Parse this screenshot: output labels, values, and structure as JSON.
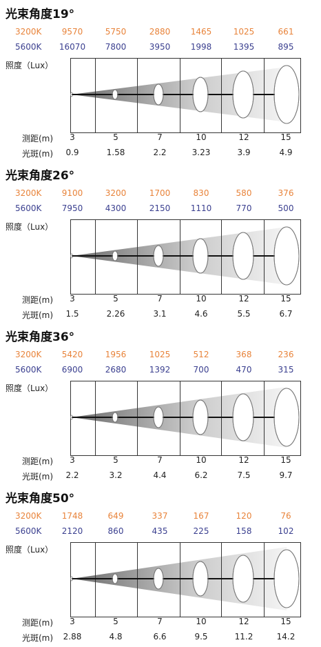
{
  "labels": {
    "lux": "照度（Lux）",
    "distance": "测距(m)",
    "spot": "光斑(m)"
  },
  "colors": {
    "k3200": "#e8833a",
    "k5600": "#3a3f8f"
  },
  "panels": [
    {
      "title": "光束角度19°",
      "row_3200": {
        "label": "3200K",
        "values": [
          "9570",
          "5750",
          "2880",
          "1465",
          "1025",
          "661"
        ]
      },
      "row_5600": {
        "label": "5600K",
        "values": [
          "16070",
          "7800",
          "3950",
          "1998",
          "1395",
          "895"
        ]
      },
      "distances": [
        "3",
        "5",
        "7",
        "10",
        "12",
        "15"
      ],
      "spots": [
        "0.9",
        "1.58",
        "2.2",
        "3.23",
        "3.9",
        "4.9"
      ]
    },
    {
      "title": "光束角度26°",
      "row_3200": {
        "label": "3200K",
        "values": [
          "9100",
          "3200",
          "1700",
          "830",
          "580",
          "376"
        ]
      },
      "row_5600": {
        "label": "5600K",
        "values": [
          "7950",
          "4300",
          "2150",
          "1110",
          "770",
          "500"
        ]
      },
      "distances": [
        "3",
        "5",
        "7",
        "10",
        "12",
        "15"
      ],
      "spots": [
        "1.5",
        "2.26",
        "3.1",
        "4.6",
        "5.5",
        "6.7"
      ]
    },
    {
      "title": "光束角度36°",
      "row_3200": {
        "label": "3200K",
        "values": [
          "5420",
          "1956",
          "1025",
          "512",
          "368",
          "236"
        ]
      },
      "row_5600": {
        "label": "5600K",
        "values": [
          "6900",
          "2680",
          "1392",
          "700",
          "470",
          "315"
        ]
      },
      "distances": [
        "3",
        "5",
        "7",
        "10",
        "12",
        "15"
      ],
      "spots": [
        "2.2",
        "3.2",
        "4.4",
        "6.2",
        "7.5",
        "9.7"
      ]
    },
    {
      "title": "光束角度50°",
      "row_3200": {
        "label": "3200K",
        "values": [
          "1748",
          "649",
          "337",
          "167",
          "120",
          "76"
        ]
      },
      "row_5600": {
        "label": "5600K",
        "values": [
          "2120",
          "860",
          "435",
          "225",
          "158",
          "102"
        ]
      },
      "distances": [
        "3",
        "5",
        "7",
        "10",
        "12",
        "15"
      ],
      "spots": [
        "2.88",
        "4.8",
        "6.6",
        "9.5",
        "11.2",
        "14.2"
      ]
    }
  ]
}
